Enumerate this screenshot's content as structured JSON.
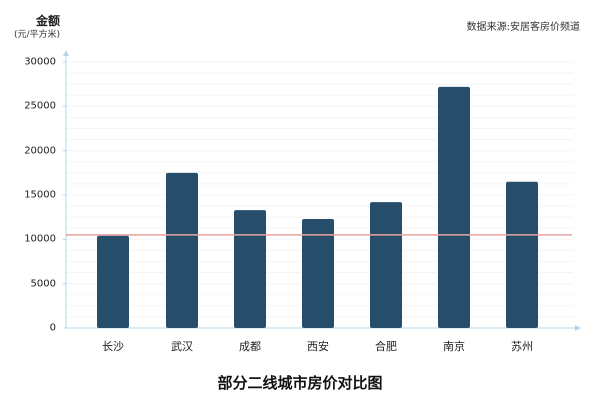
{
  "chart_data": {
    "type": "bar",
    "title": "部分二线城市房价对比图",
    "source": "数据来源:安居客房价频道",
    "ylabel": "金额",
    "yunit": "(元/平方米)",
    "xlabel": "",
    "categories": [
      "长沙",
      "武汉",
      "成都",
      "西安",
      "合肥",
      "南京",
      "苏州"
    ],
    "values": [
      10400,
      17500,
      13300,
      12300,
      14200,
      27200,
      16500
    ],
    "reference_line": 10500,
    "ylim": [
      0,
      30000
    ],
    "yticks": [
      0,
      5000,
      10000,
      15000,
      20000,
      25000,
      30000
    ],
    "grid": true,
    "legend": "none",
    "colors": {
      "bar": "#264e6b",
      "reference_line": "#e8a0a0",
      "axis": "#b8d4e8",
      "grid": "#e8e8e8"
    }
  },
  "labels": {
    "ylabel_main": "金额",
    "ylabel_unit": "(元/平方米)",
    "source": "数据来源:安居客房价频道",
    "title": "部分二线城市房价对比图",
    "yticks": [
      "30000",
      "25000",
      "20000",
      "15000",
      "10000",
      "5000",
      "0"
    ],
    "categories": [
      "长沙",
      "武汉",
      "成都",
      "西安",
      "合肥",
      "南京",
      "苏州"
    ]
  }
}
